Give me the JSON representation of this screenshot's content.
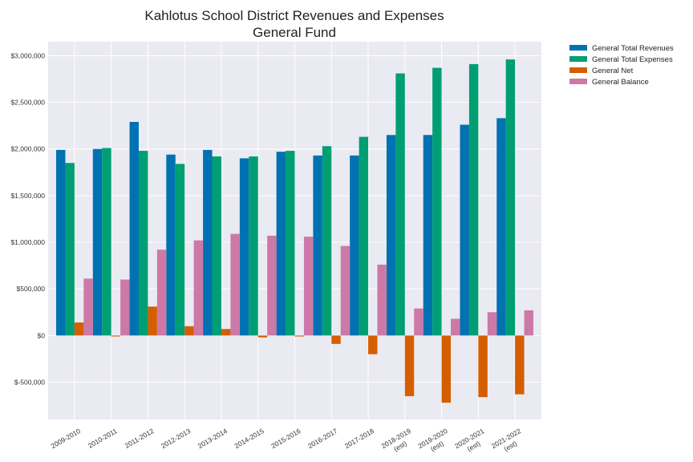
{
  "chart_data": {
    "type": "bar",
    "title": "Kahlotus School District Revenues and Expenses",
    "subtitle": "General Fund",
    "xlabel": "",
    "ylabel": "",
    "ylim": [
      -900000,
      3150000
    ],
    "yticks": [
      -500000,
      0,
      500000,
      1000000,
      1500000,
      2000000,
      2500000,
      3000000
    ],
    "ytick_labels": [
      "$-500,000",
      "$0",
      "$500,000",
      "$1,000,000",
      "$1,500,000",
      "$2,000,000",
      "$2,500,000",
      "$3,000,000"
    ],
    "grid": true,
    "legend_position": "outside-top-right",
    "categories": [
      "2009-2010",
      "2010-2011",
      "2011-2012",
      "2012-2013",
      "2013-2014",
      "2014-2015",
      "2015-2016",
      "2016-2017",
      "2017-2018",
      "2018-2019\n(est)",
      "2019-2020\n(est)",
      "2020-2021\n(est)",
      "2021-2022\n(est)"
    ],
    "series": [
      {
        "name": "General Total Revenues",
        "color": "#0072b2",
        "values": [
          1990000,
          2000000,
          2290000,
          1940000,
          1990000,
          1900000,
          1970000,
          1930000,
          1930000,
          2150000,
          2150000,
          2260000,
          2330000
        ]
      },
      {
        "name": "General Total Expenses",
        "color": "#009e73",
        "values": [
          1850000,
          2010000,
          1980000,
          1840000,
          1920000,
          1920000,
          1980000,
          2030000,
          2130000,
          2810000,
          2870000,
          2910000,
          2960000
        ]
      },
      {
        "name": "General Net",
        "color": "#d55e00",
        "values": [
          140000,
          -10000,
          310000,
          100000,
          70000,
          -20000,
          -10000,
          -90000,
          -200000,
          -650000,
          -720000,
          -660000,
          -630000
        ]
      },
      {
        "name": "General Balance",
        "color": "#cc79a7",
        "values": [
          610000,
          600000,
          920000,
          1020000,
          1090000,
          1070000,
          1060000,
          960000,
          760000,
          290000,
          180000,
          250000,
          270000
        ]
      }
    ]
  }
}
